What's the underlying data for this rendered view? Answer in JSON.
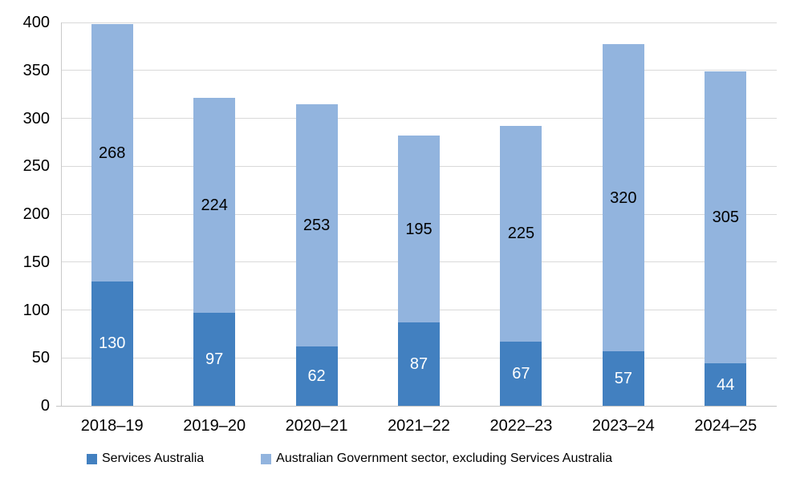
{
  "chart_data": {
    "type": "bar",
    "stacked": true,
    "categories": [
      "2018–19",
      "2019–20",
      "2020–21",
      "2021–22",
      "2022–23",
      "2023–24",
      "2024–25"
    ],
    "series": [
      {
        "name": "Services Australia",
        "color": "#4280c0",
        "label_color": "#ffffff",
        "values": [
          130,
          97,
          62,
          87,
          67,
          57,
          44
        ]
      },
      {
        "name": "Australian Government sector, excluding Services Australia",
        "color": "#92b4de",
        "label_color": "#000000",
        "values": [
          268,
          224,
          253,
          195,
          225,
          320,
          305
        ]
      }
    ],
    "title": "",
    "xlabel": "",
    "ylabel": "",
    "ylim": [
      0,
      400
    ],
    "yticks": [
      0,
      50,
      100,
      150,
      200,
      250,
      300,
      350,
      400
    ],
    "grid": true,
    "legend_position": "bottom",
    "data_labels": "inside-center"
  },
  "colors": {
    "background": "#ffffff",
    "gridline": "#d9d9d9",
    "axis_line": "#c9c9c9",
    "tick_label": "#000000"
  }
}
